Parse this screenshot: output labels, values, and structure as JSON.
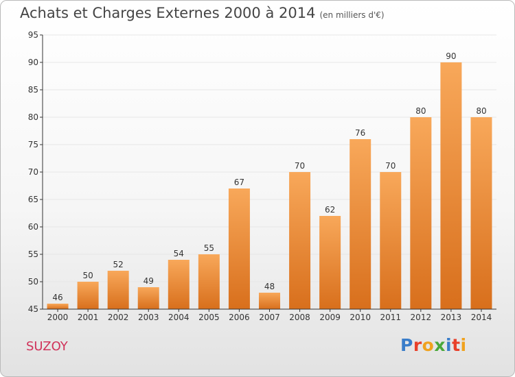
{
  "header": {
    "title": "Achats et Charges Externes 2000 à 2014",
    "subtitle": "(en milliers d'€)"
  },
  "footer": {
    "commune": "SUZOY",
    "brand": "Proxiti",
    "brand_colors": [
      "#3a7dc9",
      "#e8402a",
      "#f0a21e",
      "#4aa83a",
      "#3a7dc9",
      "#e8402a",
      "#f0a21e"
    ]
  },
  "colors": {
    "bar_top": "#f8a85a",
    "bar_bottom": "#d86f1c",
    "axis": "#333333",
    "grid": "#e6e6e6"
  },
  "chart_data": {
    "type": "bar",
    "categories": [
      "2000",
      "2001",
      "2002",
      "2003",
      "2004",
      "2005",
      "2006",
      "2007",
      "2008",
      "2009",
      "2010",
      "2011",
      "2012",
      "2013",
      "2014"
    ],
    "values": [
      46,
      50,
      52,
      49,
      54,
      55,
      67,
      48,
      70,
      62,
      76,
      70,
      80,
      90,
      80
    ],
    "ylim": [
      45,
      95
    ],
    "yticks": [
      45,
      50,
      55,
      60,
      65,
      70,
      75,
      80,
      85,
      90,
      95
    ],
    "grid": true,
    "data_labels": true
  }
}
